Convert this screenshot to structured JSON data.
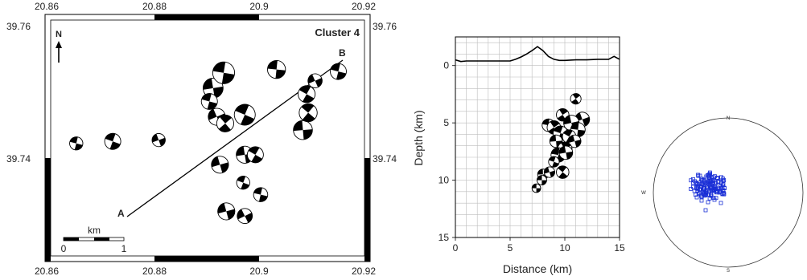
{
  "map": {
    "title": "Cluster 4",
    "north_label": "N",
    "profile_start_label": "A",
    "profile_end_label": "B",
    "scale_unit": "km",
    "scale_ticks": [
      "0",
      "1"
    ],
    "lon_ticks": [
      "20.86",
      "20.88",
      "20.9",
      "20.92"
    ],
    "lat_ticks": [
      "39.76",
      "39.74"
    ],
    "colors": {
      "frame": "#000000",
      "compression": "#000000",
      "dilatation": "#ffffff"
    },
    "mechanisms": [
      {
        "lon": 20.8656,
        "lat": 39.7422,
        "mag": 0.7
      },
      {
        "lon": 20.8725,
        "lat": 39.7425,
        "mag": 1.0
      },
      {
        "lon": 20.8812,
        "lat": 39.7427,
        "mag": 0.7
      },
      {
        "lon": 20.8915,
        "lat": 39.7505,
        "mag": 1.4
      },
      {
        "lon": 20.8935,
        "lat": 39.7528,
        "mag": 1.6
      },
      {
        "lon": 20.8908,
        "lat": 39.7485,
        "mag": 1.0
      },
      {
        "lon": 20.8922,
        "lat": 39.7462,
        "mag": 1.1
      },
      {
        "lon": 20.8938,
        "lat": 39.7452,
        "mag": 1.1
      },
      {
        "lon": 20.8975,
        "lat": 39.7465,
        "mag": 1.5
      },
      {
        "lon": 20.9035,
        "lat": 39.7533,
        "mag": 1.2
      },
      {
        "lon": 20.9085,
        "lat": 39.7442,
        "mag": 1.3
      },
      {
        "lon": 20.9095,
        "lat": 39.7468,
        "mag": 1.2
      },
      {
        "lon": 20.9092,
        "lat": 39.7496,
        "mag": 1.1
      },
      {
        "lon": 20.9108,
        "lat": 39.7516,
        "mag": 0.8
      },
      {
        "lon": 20.9152,
        "lat": 39.753,
        "mag": 1.0
      },
      {
        "lon": 20.8975,
        "lat": 39.7405,
        "mag": 1.1
      },
      {
        "lon": 20.8995,
        "lat": 39.7405,
        "mag": 1.0
      },
      {
        "lon": 20.8928,
        "lat": 39.739,
        "mag": 1.1
      },
      {
        "lon": 20.8972,
        "lat": 39.7363,
        "mag": 0.7
      },
      {
        "lon": 20.9005,
        "lat": 39.7345,
        "mag": 0.8
      },
      {
        "lon": 20.894,
        "lat": 39.732,
        "mag": 1.1
      },
      {
        "lon": 20.8975,
        "lat": 39.7313,
        "mag": 0.9
      }
    ]
  },
  "chart_data": [
    {
      "type": "scatter",
      "xlabel": "Distance (km)",
      "ylabel": "Depth (km)",
      "xlim": [
        0,
        15
      ],
      "ylim": [
        15,
        -2.5
      ],
      "x_ticks": [
        "0",
        "5",
        "10",
        "15"
      ],
      "y_ticks": [
        "0",
        "5",
        "10",
        "15"
      ],
      "grid": true,
      "topography": {
        "x": [
          0,
          0.5,
          1,
          2,
          3,
          4,
          5,
          5.5,
          6,
          6.5,
          7,
          7.5,
          8,
          8.5,
          9,
          9.5,
          10,
          11,
          12,
          13,
          14,
          14.5,
          15
        ],
        "depth": [
          -0.5,
          -0.35,
          -0.4,
          -0.4,
          -0.4,
          -0.4,
          -0.4,
          -0.55,
          -0.75,
          -1.0,
          -1.3,
          -1.65,
          -1.3,
          -0.8,
          -0.55,
          -0.45,
          -0.45,
          -0.5,
          -0.5,
          -0.55,
          -0.55,
          -0.8,
          -0.55
        ]
      },
      "events": [
        {
          "distance": 11.0,
          "depth": 2.9,
          "mag": 0.6
        },
        {
          "distance": 9.8,
          "depth": 4.3,
          "mag": 0.8
        },
        {
          "distance": 11.6,
          "depth": 4.7,
          "mag": 1.0
        },
        {
          "distance": 8.5,
          "depth": 5.2,
          "mag": 0.8
        },
        {
          "distance": 9.0,
          "depth": 5.4,
          "mag": 0.9
        },
        {
          "distance": 10.6,
          "depth": 5.0,
          "mag": 1.1
        },
        {
          "distance": 11.2,
          "depth": 5.6,
          "mag": 1.0
        },
        {
          "distance": 9.6,
          "depth": 5.9,
          "mag": 1.0
        },
        {
          "distance": 10.4,
          "depth": 6.2,
          "mag": 0.9
        },
        {
          "distance": 9.2,
          "depth": 6.6,
          "mag": 0.8
        },
        {
          "distance": 10.9,
          "depth": 6.6,
          "mag": 0.8
        },
        {
          "distance": 10.0,
          "depth": 7.3,
          "mag": 1.0
        },
        {
          "distance": 9.4,
          "depth": 7.8,
          "mag": 1.0
        },
        {
          "distance": 10.1,
          "depth": 7.6,
          "mag": 0.9
        },
        {
          "distance": 9.0,
          "depth": 8.4,
          "mag": 0.6
        },
        {
          "distance": 8.0,
          "depth": 9.5,
          "mag": 0.6
        },
        {
          "distance": 8.6,
          "depth": 9.3,
          "mag": 0.6
        },
        {
          "distance": 9.8,
          "depth": 9.3,
          "mag": 0.8
        },
        {
          "distance": 7.9,
          "depth": 10.0,
          "mag": 0.5
        },
        {
          "distance": 7.4,
          "depth": 10.7,
          "mag": 0.4
        }
      ]
    },
    {
      "type": "scatter",
      "projection": "stereonet",
      "labels": {
        "north": "N",
        "west": "W",
        "south": "S"
      },
      "marker": "open-square",
      "color": "#1a2fd6"
    }
  ]
}
